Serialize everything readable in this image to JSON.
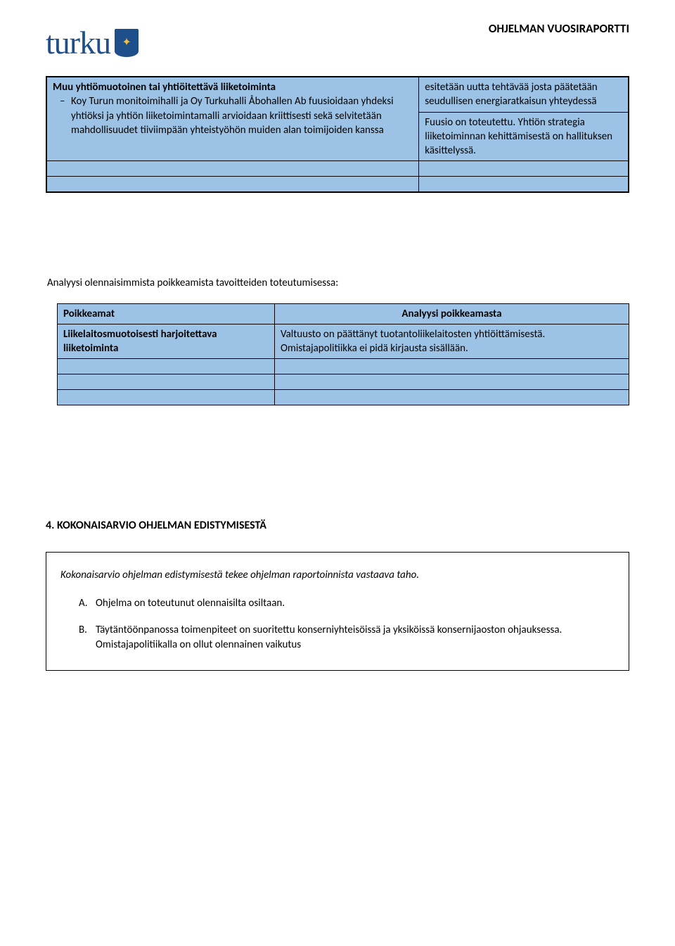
{
  "header": {
    "logo_text": "turku",
    "doc_title": "OHJELMAN VUOSIRAPORTTI"
  },
  "table1": {
    "top_right": "esitetään uutta tehtävää josta päätetään seudullisen energiaratkaisun yhteydessä",
    "row_title": "Muu yhtiömuotoinen tai yhtiöitettävä liiketoiminta",
    "bullet": "Koy Turun monitoimihalli ja Oy Turkuhalli Åbohallen Ab fuusioidaan yhdeksi yhtiöksi ja yhtiön liiketoimintamalli arvioidaan kriittisesti sekä selvitetään mahdollisuudet tiiviimpään yhteistyöhön muiden alan toimijoiden kanssa",
    "right": "Fuusio on toteutettu. Yhtiön strategia liiketoiminnan kehittämisestä on hallituksen käsittelyssä."
  },
  "analysis_title": "Analyysi olennaisimmista poikkeamista tavoitteiden toteutumisessa:",
  "table2": {
    "col1_header": "Poikkeamat",
    "col2_header": "Analyysi poikkeamasta",
    "row1_left": "Liikelaitosmuotoisesti harjoitettava liiketoiminta",
    "row1_right": "Valtuusto on päättänyt tuotantoliikelaitosten yhtiöittämisestä. Omistajapolitiikka ei pidä kirjausta sisällään."
  },
  "section4": {
    "heading": "4. KOKONAISARVIO OHJELMAN EDISTYMISESTÄ",
    "intro": "Kokonaisarvio ohjelman edistymisestä tekee ohjelman raportoinnista vastaava taho.",
    "items": [
      {
        "letter": "A.",
        "text": "Ohjelma on toteutunut olennaisilta osiltaan."
      },
      {
        "letter": "B.",
        "text": "Täytäntöönpanossa toimenpiteet on suoritettu konserniyhteisöissä ja yksiköissä konsernijaoston ohjauksessa. Omistajapolitiikalla on ollut olennainen vaikutus"
      }
    ]
  },
  "colors": {
    "cell_bg": "#9cc3e5",
    "border": "#000000",
    "logo": "#1e4f8a"
  }
}
